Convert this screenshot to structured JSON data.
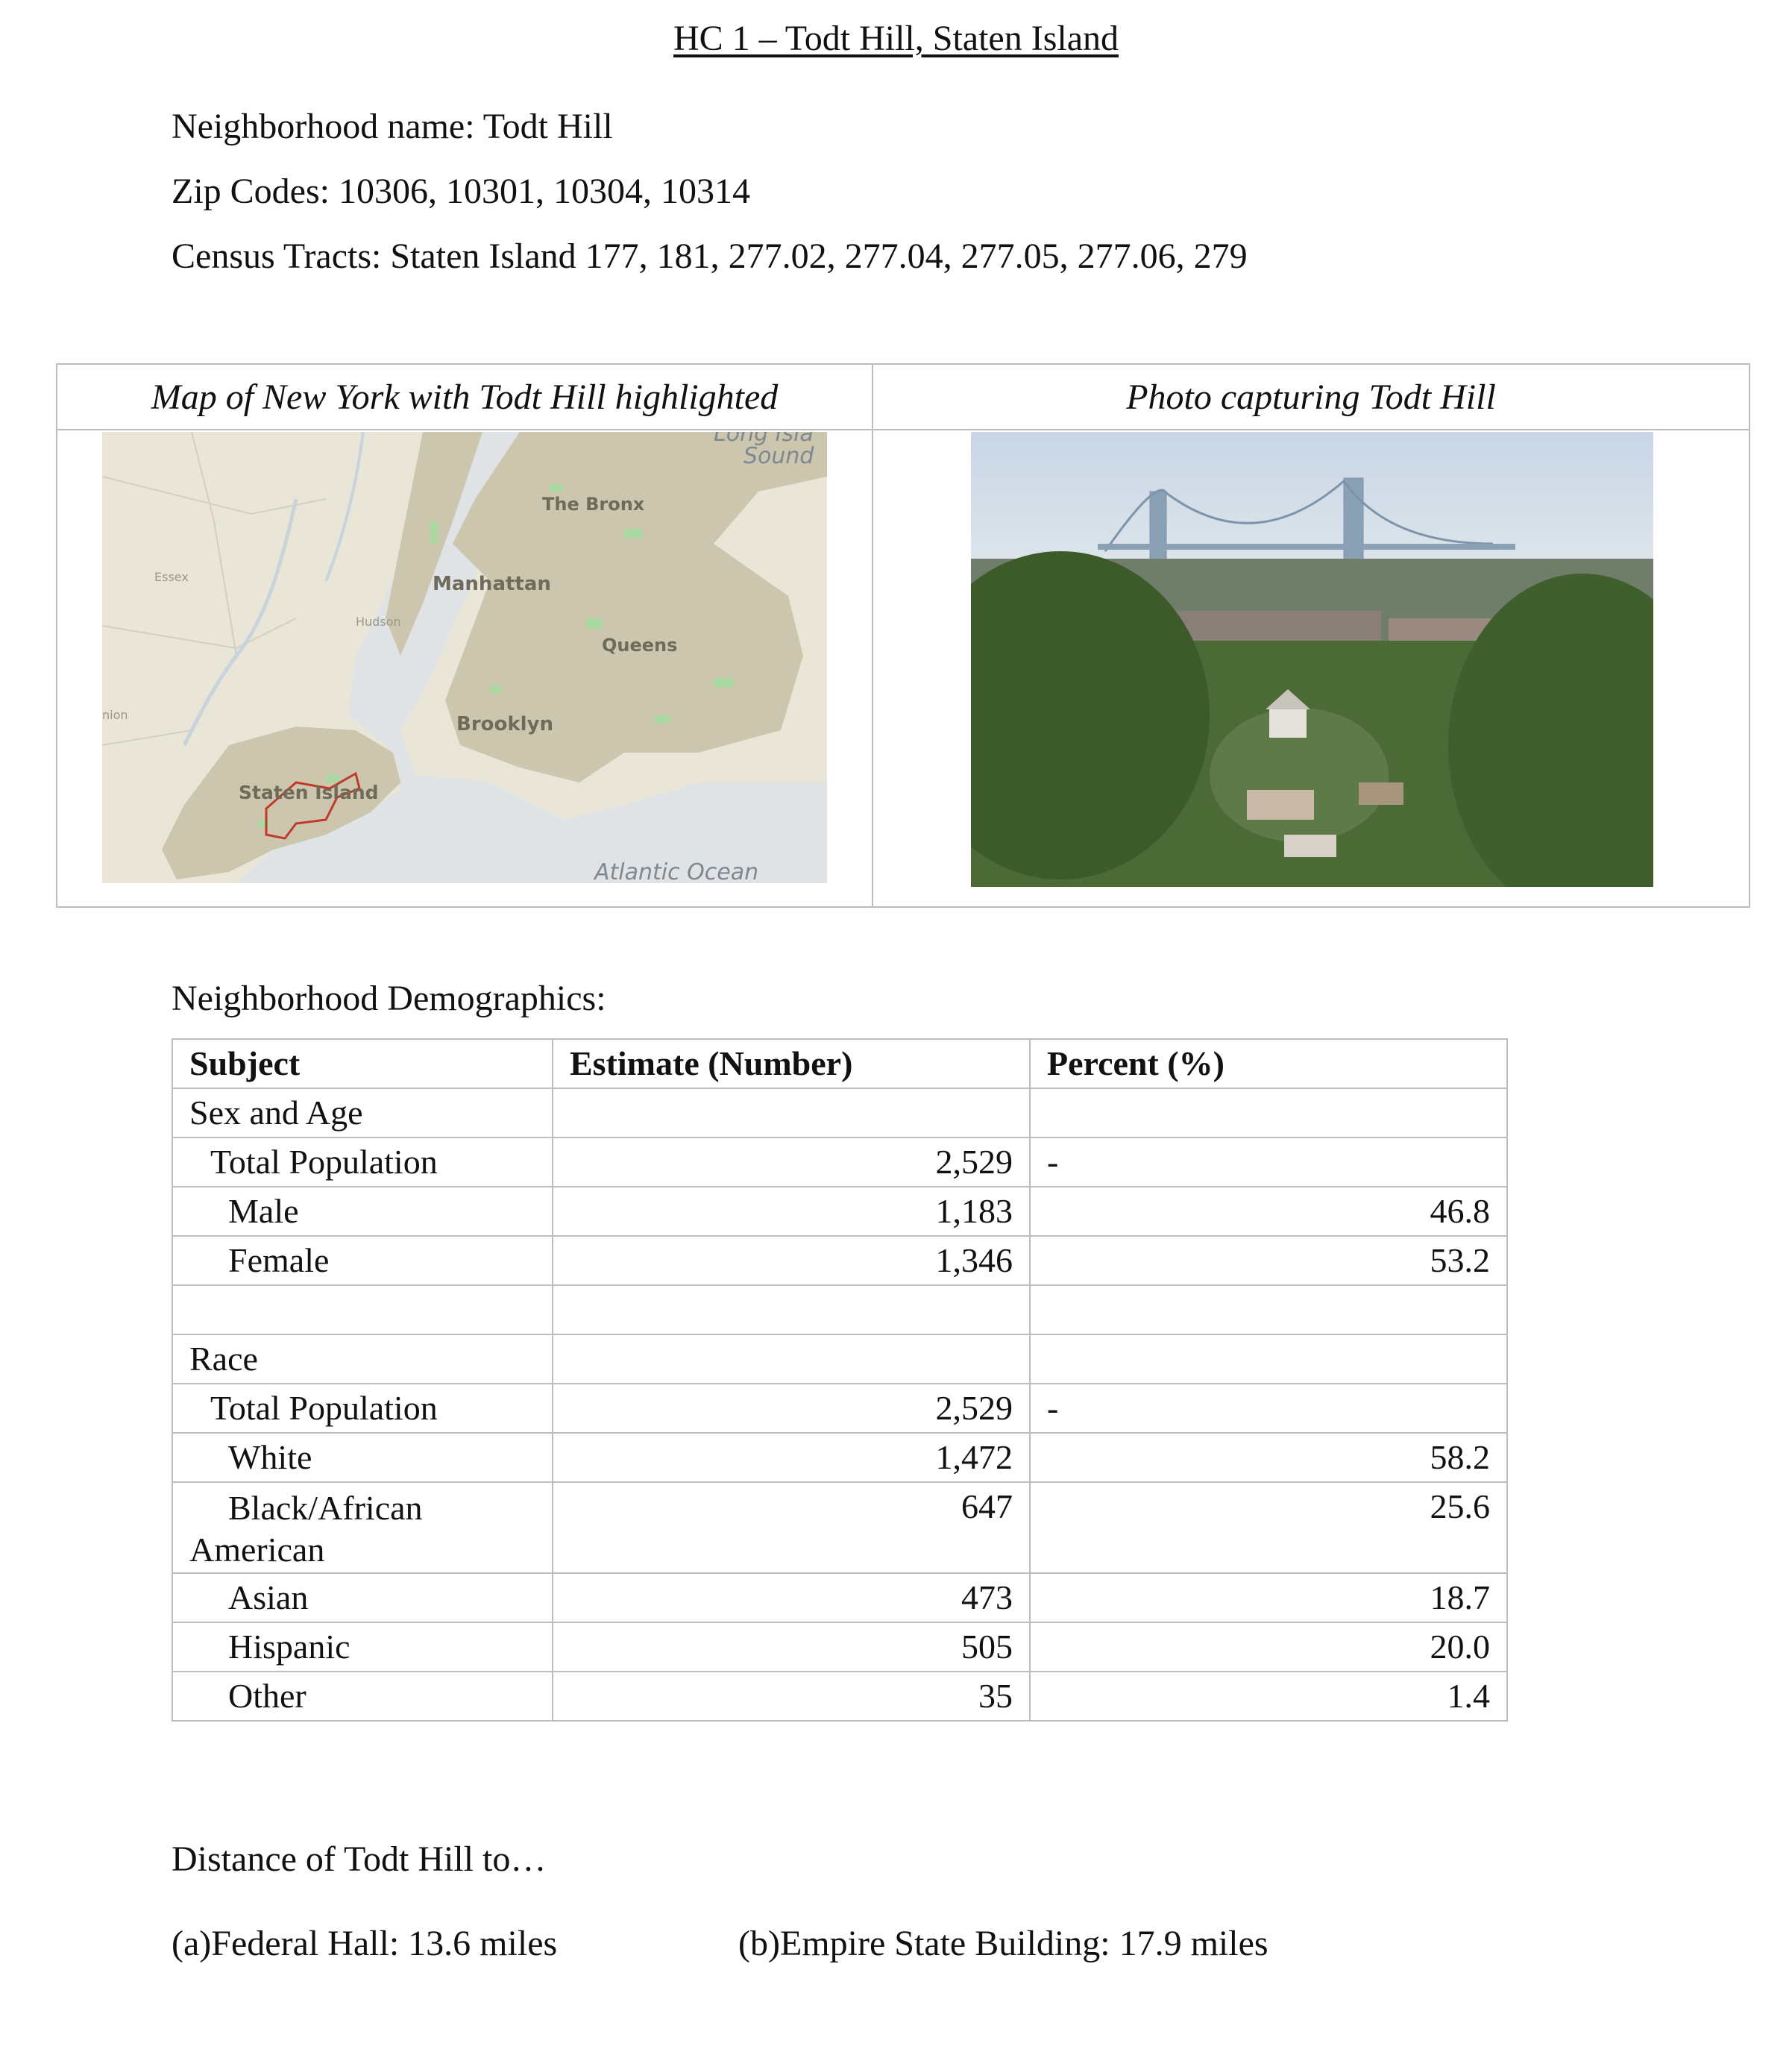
{
  "title": "HC 1 – Todt Hill, Staten Island",
  "info": {
    "neighborhood": "Neighborhood name: Todt Hill",
    "zip_codes": "Zip Codes: 10306, 10301, 10304, 10314",
    "census_tracts": "Census Tracts: Staten Island 177, 181, 277.02, 277.04, 277.05, 277.06, 279"
  },
  "media": {
    "map_caption": "Map of New York with Todt Hill highlighted",
    "photo_caption": "Photo capturing Todt Hill",
    "map_labels": {
      "long_island_sound_1": "Long Isla",
      "long_island_sound_2": "Sound",
      "bronx": "The Bronx",
      "essex": "Essex",
      "manhattan": "Manhattan",
      "hudson": "Hudson",
      "queens": "Queens",
      "union": "nion",
      "brooklyn": "Brooklyn",
      "staten_island": "Staten Island",
      "atlantic": "Atlantic Ocean"
    }
  },
  "demographics": {
    "label": "Neighborhood Demographics:",
    "headers": {
      "subject": "Subject",
      "estimate": "Estimate (Number)",
      "percent": "Percent (%)"
    },
    "rows": {
      "sex_age": {
        "subject": "Sex and Age",
        "estimate": "",
        "percent": ""
      },
      "total1": {
        "subject": "Total Population",
        "estimate": "2,529",
        "percent": "-"
      },
      "male": {
        "subject": "Male",
        "estimate": "1,183",
        "percent": "46.8"
      },
      "female": {
        "subject": "Female",
        "estimate": "1,346",
        "percent": "53.2"
      },
      "race": {
        "subject": "Race",
        "estimate": "",
        "percent": ""
      },
      "total2": {
        "subject": "Total Population",
        "estimate": "2,529",
        "percent": "-"
      },
      "white": {
        "subject": "White",
        "estimate": "1,472",
        "percent": "58.2"
      },
      "black": {
        "subject_line1": "Black/African",
        "subject_line2": "American",
        "estimate": "647",
        "percent": "25.6"
      },
      "asian": {
        "subject": "Asian",
        "estimate": "473",
        "percent": "18.7"
      },
      "hispanic": {
        "subject": "Hispanic",
        "estimate": "505",
        "percent": "20.0"
      },
      "other": {
        "subject": "Other",
        "estimate": "35",
        "percent": "1.4"
      }
    }
  },
  "distance": {
    "label": "Distance of Todt Hill to…",
    "federal_hall": "(a)Federal Hall: 13.6 miles",
    "empire_state": "(b)Empire State Building: 17.9 miles"
  }
}
